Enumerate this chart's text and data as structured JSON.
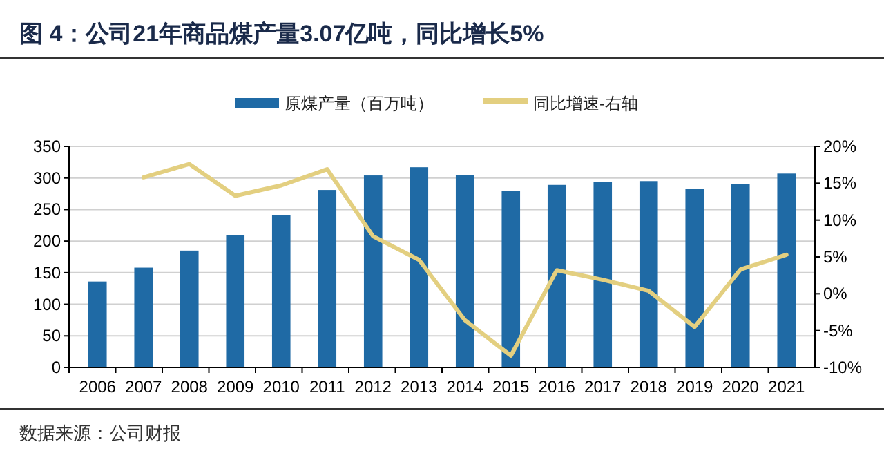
{
  "chart_data": {
    "type": "bar",
    "title": "图 4：公司21年商品煤产量3.07亿吨，同比增长5%",
    "categories": [
      "2006",
      "2007",
      "2008",
      "2009",
      "2010",
      "2011",
      "2012",
      "2013",
      "2014",
      "2015",
      "2016",
      "2017",
      "2018",
      "2019",
      "2020",
      "2021"
    ],
    "series": [
      {
        "name": "原煤产量（百万吨）",
        "color": "#1f6aa5",
        "values": [
          136,
          158,
          185,
          210,
          241,
          281,
          304,
          317,
          305,
          280,
          289,
          294,
          295,
          283,
          290,
          307
        ]
      },
      {
        "name": "同比增速-右轴",
        "type": "line",
        "axis": "y2",
        "color": "#e3cf80",
        "values": [
          null,
          15.8,
          17.6,
          13.3,
          14.7,
          16.9,
          7.8,
          4.6,
          -3.6,
          -8.4,
          3.2,
          1.9,
          0.4,
          -4.5,
          3.3,
          5.3
        ]
      }
    ],
    "ylim": [
      0,
      350
    ],
    "yticks": [
      0,
      50,
      100,
      150,
      200,
      250,
      300,
      350
    ],
    "y2lim": [
      -10,
      20
    ],
    "y2ticks": [
      {
        "value": -10,
        "label": "-10%"
      },
      {
        "value": -5,
        "label": "-5%"
      },
      {
        "value": 0,
        "label": "0%"
      },
      {
        "value": 5,
        "label": "5%"
      },
      {
        "value": 10,
        "label": "10%"
      },
      {
        "value": 15,
        "label": "15%"
      },
      {
        "value": 20,
        "label": "20%"
      }
    ],
    "grid": "y",
    "legend": "top",
    "marker": "none",
    "annotations": [
      "数据来源：公司财报"
    ]
  }
}
